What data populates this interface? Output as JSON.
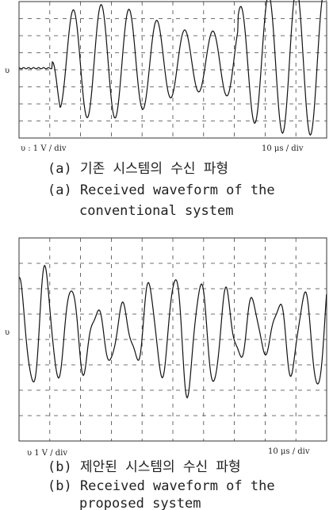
{
  "figures": [
    {
      "y_label": "υ",
      "scale_left": "υ : 1 V / div",
      "scale_right": "10 μs / div",
      "caption_ko": "(a) 기존 시스템의 수신 파형",
      "caption_en": [
        "(a) Received waveform of the",
        "conventional system"
      ]
    },
    {
      "y_label": "υ",
      "scale_left": "υ   1 V / div",
      "scale_right": "10 μs / div",
      "caption_ko": "(b) 제안된 시스템의 수신 파형",
      "caption_en": [
        "(b) Received waveform of the",
        "proposed system"
      ]
    }
  ]
}
